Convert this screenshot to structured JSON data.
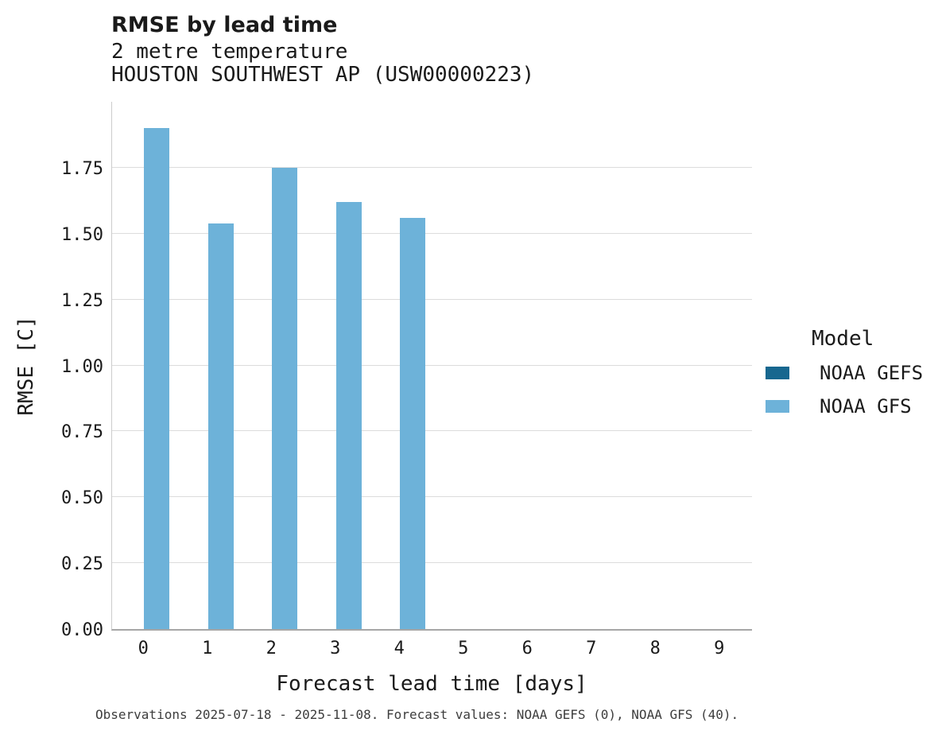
{
  "title": "RMSE by lead time",
  "subtitle_line1": "2 metre temperature",
  "subtitle_line2": "HOUSTON SOUTHWEST AP (USW00000223)",
  "caption": "Observations 2025-07-18 - 2025-11-08. Forecast values: NOAA GEFS (0), NOAA GFS (40).",
  "legend": {
    "title": "Model",
    "entries": [
      {
        "label": "NOAA GEFS",
        "color": "#17678f"
      },
      {
        "label": "NOAA GFS",
        "color": "#6db2d9"
      }
    ]
  },
  "colors": {
    "gridline": "#dcdcdc",
    "axis": "#a6a6a6",
    "text": "#1a1a1a",
    "caption_text": "#3d3d3d"
  },
  "chart_data": {
    "type": "bar",
    "title": "RMSE by lead time",
    "xlabel": "Forecast lead time [days]",
    "ylabel": "RMSE [C]",
    "categories": [
      0,
      1,
      2,
      3,
      4,
      5,
      6,
      7,
      8,
      9
    ],
    "xtick_labels": [
      "0",
      "1",
      "2",
      "3",
      "4",
      "5",
      "6",
      "7",
      "8",
      "9"
    ],
    "yticks": [
      0.0,
      0.25,
      0.5,
      0.75,
      1.0,
      1.25,
      1.5,
      1.75
    ],
    "ytick_labels": [
      "0.00",
      "0.25",
      "0.50",
      "0.75",
      "1.00",
      "1.25",
      "1.50",
      "1.75"
    ],
    "ylim": [
      0,
      2.0
    ],
    "grid": true,
    "legend_position": "right",
    "series": [
      {
        "name": "NOAA GEFS",
        "color": "#17678f",
        "values": [
          null,
          null,
          null,
          null,
          null,
          null,
          null,
          null,
          null,
          null
        ]
      },
      {
        "name": "NOAA GFS",
        "color": "#6db2d9",
        "values": [
          1.9,
          1.54,
          1.75,
          1.62,
          1.56,
          null,
          null,
          null,
          null,
          null
        ]
      }
    ]
  }
}
